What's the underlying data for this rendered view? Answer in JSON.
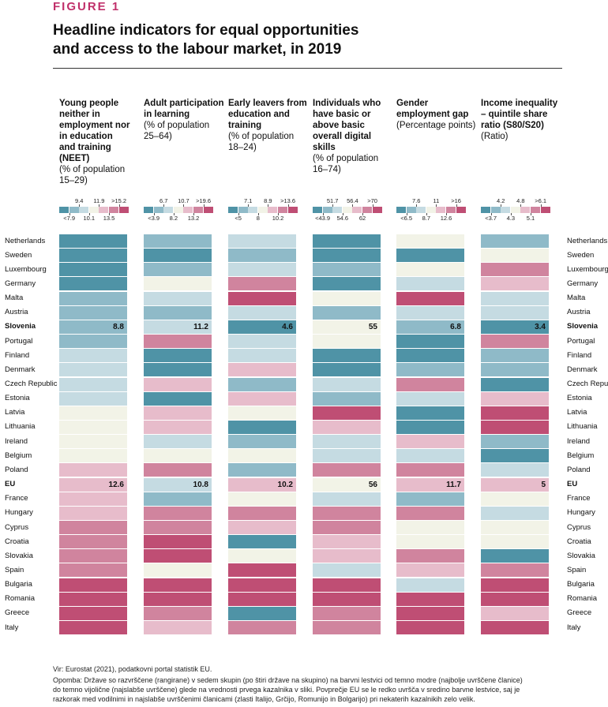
{
  "figure_label": "FIGURE 1",
  "title_line1": "Headline indicators for equal opportunities",
  "title_line2": "and access to the labour market, in 2019",
  "footnote_source": "Vir: Eurostat (2021), podatkovni portal statistik EU.",
  "footnote_note1": "Opomba: Države so razvrščene (rangirane) v sedem skupin (po štiri države na skupino) na barvni lestvici od temno modre (najbolje uvrščene članice)",
  "footnote_note2": "do temno vijolične (najslabše uvrščene) glede na vrednosti prvega kazalnika v sliki. Povprečje EU se le redko uvršča v sredino barvne lestvice, saj je",
  "footnote_note3": "razkorak med vodilnimi in najslabše uvrščenimi članicami (zlasti Italijo, Grčijo, Romunijo in Bolgarijo) pri nekaterih kazalnikih zelo velik.",
  "palette": [
    "#4f93a6",
    "#8fbac8",
    "#c5dbe2",
    "#f2f3e7",
    "#e7bccb",
    "#d0849e",
    "#bf4e74"
  ],
  "chart_data": {
    "type": "heatmap",
    "title": "Headline indicators for equal opportunities and access to the labour market, in 2019",
    "rows": [
      "Netherlands",
      "Sweden",
      "Luxembourg",
      "Germany",
      "Malta",
      "Austria",
      "Slovenia",
      "Portugal",
      "Finland",
      "Denmark",
      "Czech Republic",
      "Estonia",
      "Latvia",
      "Lithuania",
      "Ireland",
      "Belgium",
      "Poland",
      "EU",
      "France",
      "Hungary",
      "Cyprus",
      "Croatia",
      "Slovakia",
      "Spain",
      "Bulgaria",
      "Romania",
      "Greece",
      "Italy"
    ],
    "highlight_rows": [
      "Slovenia",
      "EU"
    ],
    "columns": [
      {
        "title": "Young people neither in employment nor in education and training (NEET)",
        "subtitle": "(% of population 15–29)",
        "legend_upper": [
          "9.4",
          "11.9",
          ">15.2"
        ],
        "legend_lower": [
          "<7.9",
          "10.1",
          "13.5"
        ],
        "classes": [
          0,
          0,
          0,
          0,
          1,
          1,
          1,
          1,
          2,
          2,
          2,
          2,
          3,
          3,
          3,
          3,
          4,
          4,
          4,
          4,
          5,
          5,
          5,
          5,
          6,
          6,
          6,
          6
        ],
        "labels": {
          "Slovenia": "8.8",
          "EU": "12.6"
        }
      },
      {
        "title": "Adult participation in learning",
        "subtitle": "(% of population 25–64)",
        "legend_upper": [
          "6.7",
          "10.7",
          ">19.6"
        ],
        "legend_lower": [
          "<3.9",
          "8.2",
          "13.2"
        ],
        "classes": [
          1,
          0,
          1,
          3,
          2,
          1,
          2,
          5,
          0,
          0,
          4,
          0,
          4,
          4,
          2,
          3,
          5,
          2,
          1,
          5,
          5,
          6,
          6,
          3,
          6,
          6,
          5,
          4
        ],
        "labels": {
          "Slovenia": "11.2",
          "EU": "10.8"
        }
      },
      {
        "title": "Early leavers from education and training",
        "subtitle": "(% of population 18–24)",
        "legend_upper": [
          "7.1",
          "8.9",
          ">13.6"
        ],
        "legend_lower": [
          "<5",
          "8",
          "10.2"
        ],
        "classes": [
          2,
          1,
          2,
          5,
          6,
          2,
          0,
          2,
          2,
          4,
          1,
          4,
          3,
          0,
          1,
          3,
          1,
          4,
          3,
          5,
          4,
          0,
          3,
          6,
          6,
          6,
          0,
          5
        ],
        "labels": {
          "Slovenia": "4.6",
          "EU": "10.2"
        }
      },
      {
        "title": "Individuals who have basic or above basic overall digital skills",
        "subtitle": "(% of population 16–74)",
        "legend_upper": [
          "51.7",
          "56.4",
          ">70"
        ],
        "legend_lower": [
          "<43.9",
          "54.6",
          "62"
        ],
        "classes": [
          0,
          0,
          1,
          0,
          3,
          1,
          3,
          3,
          0,
          0,
          2,
          1,
          6,
          4,
          2,
          2,
          5,
          3,
          2,
          5,
          5,
          4,
          4,
          2,
          6,
          6,
          5,
          5
        ],
        "labels": {
          "Slovenia": "55",
          "EU": "56"
        }
      },
      {
        "title": "Gender employment gap",
        "subtitle": "(Percentage points)",
        "legend_upper": [
          "7.6",
          "11",
          ">16"
        ],
        "legend_lower": [
          "<6.5",
          "8.7",
          "12.6"
        ],
        "classes": [
          3,
          0,
          3,
          2,
          6,
          2,
          1,
          0,
          0,
          1,
          5,
          2,
          0,
          0,
          4,
          2,
          5,
          4,
          1,
          5,
          3,
          3,
          5,
          4,
          2,
          6,
          6,
          6
        ],
        "labels": {
          "Slovenia": "6.8",
          "EU": "11.7"
        }
      },
      {
        "title": "Income inequality – quintile share ratio (S80/S20)",
        "subtitle": "(Ratio)",
        "legend_upper": [
          "4.2",
          "4.8",
          ">6.1"
        ],
        "legend_lower": [
          "<3.7",
          "4.3",
          "5.1"
        ],
        "classes": [
          1,
          3,
          5,
          4,
          2,
          2,
          0,
          5,
          1,
          1,
          0,
          4,
          6,
          6,
          1,
          0,
          2,
          4,
          3,
          2,
          3,
          3,
          0,
          5,
          6,
          6,
          4,
          6
        ],
        "labels": {
          "Slovenia": "3.4",
          "EU": "5"
        }
      }
    ]
  },
  "headers": [
    {
      "bold": "Young people neither in employment nor in education and training (NEET)",
      "sub": "(% of population 15–29)"
    },
    {
      "bold": "Adult participation in learning",
      "sub": "(% of population 25–64)"
    },
    {
      "bold": "Early leavers from education and training",
      "sub": "(% of population 18–24)"
    },
    {
      "bold": "Individuals who have basic or above basic overall digital skills",
      "sub": "(% of population 16–74)"
    },
    {
      "bold": "Gender employment gap",
      "sub": "(Percentage points)"
    },
    {
      "bold": "Income inequality – quintile share ratio (S80/S20)",
      "sub": "(Ratio)"
    }
  ]
}
